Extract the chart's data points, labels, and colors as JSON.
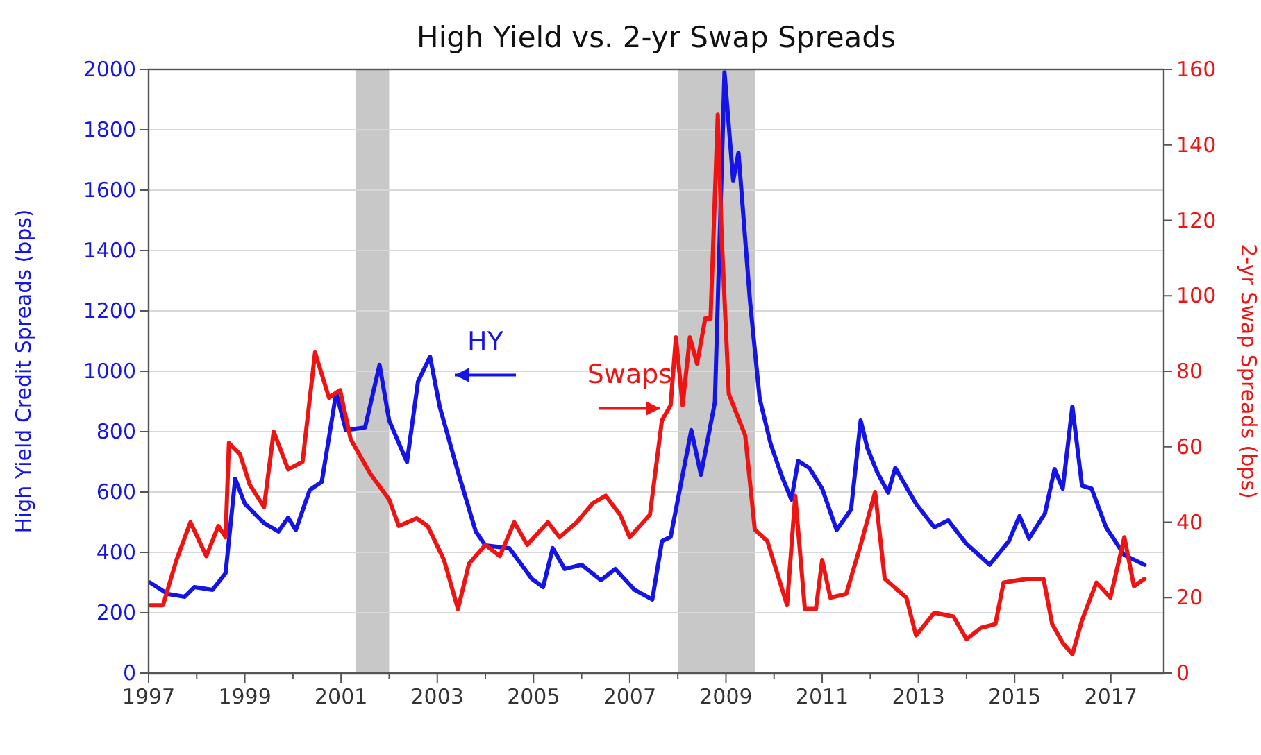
{
  "chart_data": {
    "type": "line",
    "title": "High Yield vs. 2-yr Swap Spreads",
    "ylabel": "High Yield Credit Spreads (bps)",
    "y2label": "2-yr Swap Spreads (bps)",
    "xlim": [
      1997,
      2018.1
    ],
    "xticks": [
      1997,
      {
        "value": 1998,
        "label": null
      },
      1999,
      {
        "value": 2000,
        "label": null
      },
      2001,
      {
        "value": 2002,
        "label": null
      },
      2003,
      {
        "value": 2004,
        "label": null
      },
      2005,
      {
        "value": 2006,
        "label": null
      },
      2007,
      {
        "value": 2008,
        "label": null
      },
      2009,
      {
        "value": 2010,
        "label": null
      },
      2011,
      {
        "value": 2012,
        "label": null
      },
      2013,
      {
        "value": 2014,
        "label": null
      },
      2015,
      {
        "value": 2016,
        "label": null
      },
      2017
    ],
    "ylim": [
      0,
      2000
    ],
    "yticks": [
      0,
      200,
      400,
      600,
      800,
      1000,
      1200,
      1400,
      1600,
      1800,
      2000
    ],
    "y2lim": [
      0,
      160
    ],
    "y2ticks": [
      0,
      20,
      40,
      60,
      80,
      100,
      120,
      140,
      160
    ],
    "grid": "y",
    "legend": false,
    "marker": "none",
    "line_style": "solid",
    "bands": [
      {
        "axis": "x",
        "from": 2001.3,
        "to": 2002.0,
        "label": null,
        "color": "#c8c8c8"
      },
      {
        "axis": "x",
        "from": 2008.0,
        "to": 2009.6,
        "label": null,
        "color": "#c8c8c8"
      }
    ],
    "series": [
      {
        "name": "HY",
        "color": "#1414e6",
        "x": [
          1997.03,
          1997.4,
          1997.75,
          1997.95,
          1998.33,
          1998.6,
          1998.8,
          1999.0,
          1999.4,
          1999.7,
          1999.9,
          2000.06,
          2000.35,
          2000.6,
          2000.9,
          2001.1,
          2001.5,
          2001.8,
          2002.0,
          2002.37,
          2002.6,
          2002.85,
          2003.05,
          2003.43,
          2003.8,
          2004.0,
          2004.5,
          2004.96,
          2005.2,
          2005.4,
          2005.65,
          2006.0,
          2006.4,
          2006.7,
          2007.1,
          2007.47,
          2007.67,
          2007.85,
          2008.28,
          2008.48,
          2008.77,
          2008.97,
          2009.15,
          2009.26,
          2009.5,
          2009.7,
          2009.93,
          2010.16,
          2010.36,
          2010.5,
          2010.73,
          2011.0,
          2011.3,
          2011.6,
          2011.8,
          2011.94,
          2012.14,
          2012.37,
          2012.52,
          2012.95,
          2013.33,
          2013.62,
          2014.0,
          2014.48,
          2014.88,
          2015.1,
          2015.3,
          2015.63,
          2015.83,
          2016.0,
          2016.2,
          2016.4,
          2016.6,
          2016.9,
          2017.28,
          2017.7
        ],
        "values": [
          300,
          262,
          253,
          285,
          276,
          331,
          644,
          561,
          497,
          469,
          515,
          474,
          607,
          634,
          929,
          805,
          814,
          1021,
          837,
          699,
          966,
          1048,
          883,
          667,
          469,
          423,
          414,
          313,
          285,
          414,
          345,
          359,
          308,
          345,
          276,
          244,
          437,
          451,
          805,
          657,
          897,
          1990,
          1632,
          1724,
          1232,
          910,
          759,
          653,
          575,
          703,
          680,
          611,
          474,
          542,
          837,
          745,
          667,
          598,
          680,
          561,
          483,
          506,
          428,
          359,
          437,
          520,
          446,
          529,
          676,
          611,
          883,
          621,
          611,
          483,
          391,
          359
        ]
      },
      {
        "name": "Swaps",
        "color": "#ee1414",
        "axis": "y2",
        "x": [
          1997.03,
          1997.3,
          1997.58,
          1997.87,
          1998.2,
          1998.45,
          1998.6,
          1998.67,
          1998.9,
          1999.1,
          1999.4,
          1999.6,
          1999.9,
          2000.2,
          2000.46,
          2000.75,
          2000.98,
          2001.2,
          2001.6,
          2002.0,
          2002.2,
          2002.57,
          2002.8,
          2003.14,
          2003.43,
          2003.66,
          2004.0,
          2004.3,
          2004.6,
          2004.87,
          2005.3,
          2005.54,
          2005.9,
          2006.23,
          2006.5,
          2006.8,
          2007.0,
          2007.42,
          2007.67,
          2007.85,
          2007.96,
          2008.1,
          2008.25,
          2008.4,
          2008.57,
          2008.68,
          2008.83,
          2008.91,
          2009.06,
          2009.4,
          2009.6,
          2009.86,
          2010.27,
          2010.44,
          2010.64,
          2010.87,
          2011.0,
          2011.17,
          2011.5,
          2011.8,
          2012.1,
          2012.3,
          2012.75,
          2012.95,
          2013.33,
          2013.73,
          2014.0,
          2014.3,
          2014.6,
          2014.77,
          2015.26,
          2015.6,
          2015.78,
          2016.0,
          2016.2,
          2016.4,
          2016.7,
          2016.99,
          2017.28,
          2017.48,
          2017.7
        ],
        "values": [
          18,
          18,
          30,
          40,
          31,
          39,
          36,
          61,
          58,
          50,
          44,
          64,
          54,
          56,
          85,
          73,
          75,
          62,
          53,
          46,
          39,
          41,
          39,
          30,
          17,
          29,
          34,
          31,
          40,
          34,
          40,
          36,
          40,
          45,
          47,
          42,
          36,
          42,
          67,
          71,
          89,
          71,
          89,
          82,
          94,
          94,
          148,
          116,
          74,
          63,
          38,
          35,
          18,
          47,
          17,
          17,
          30,
          20,
          21,
          34,
          48,
          25,
          20,
          10,
          16,
          15,
          9,
          12,
          13,
          24,
          25,
          25,
          13,
          8,
          5,
          14,
          24,
          20,
          36,
          23,
          25
        ]
      }
    ]
  }
}
